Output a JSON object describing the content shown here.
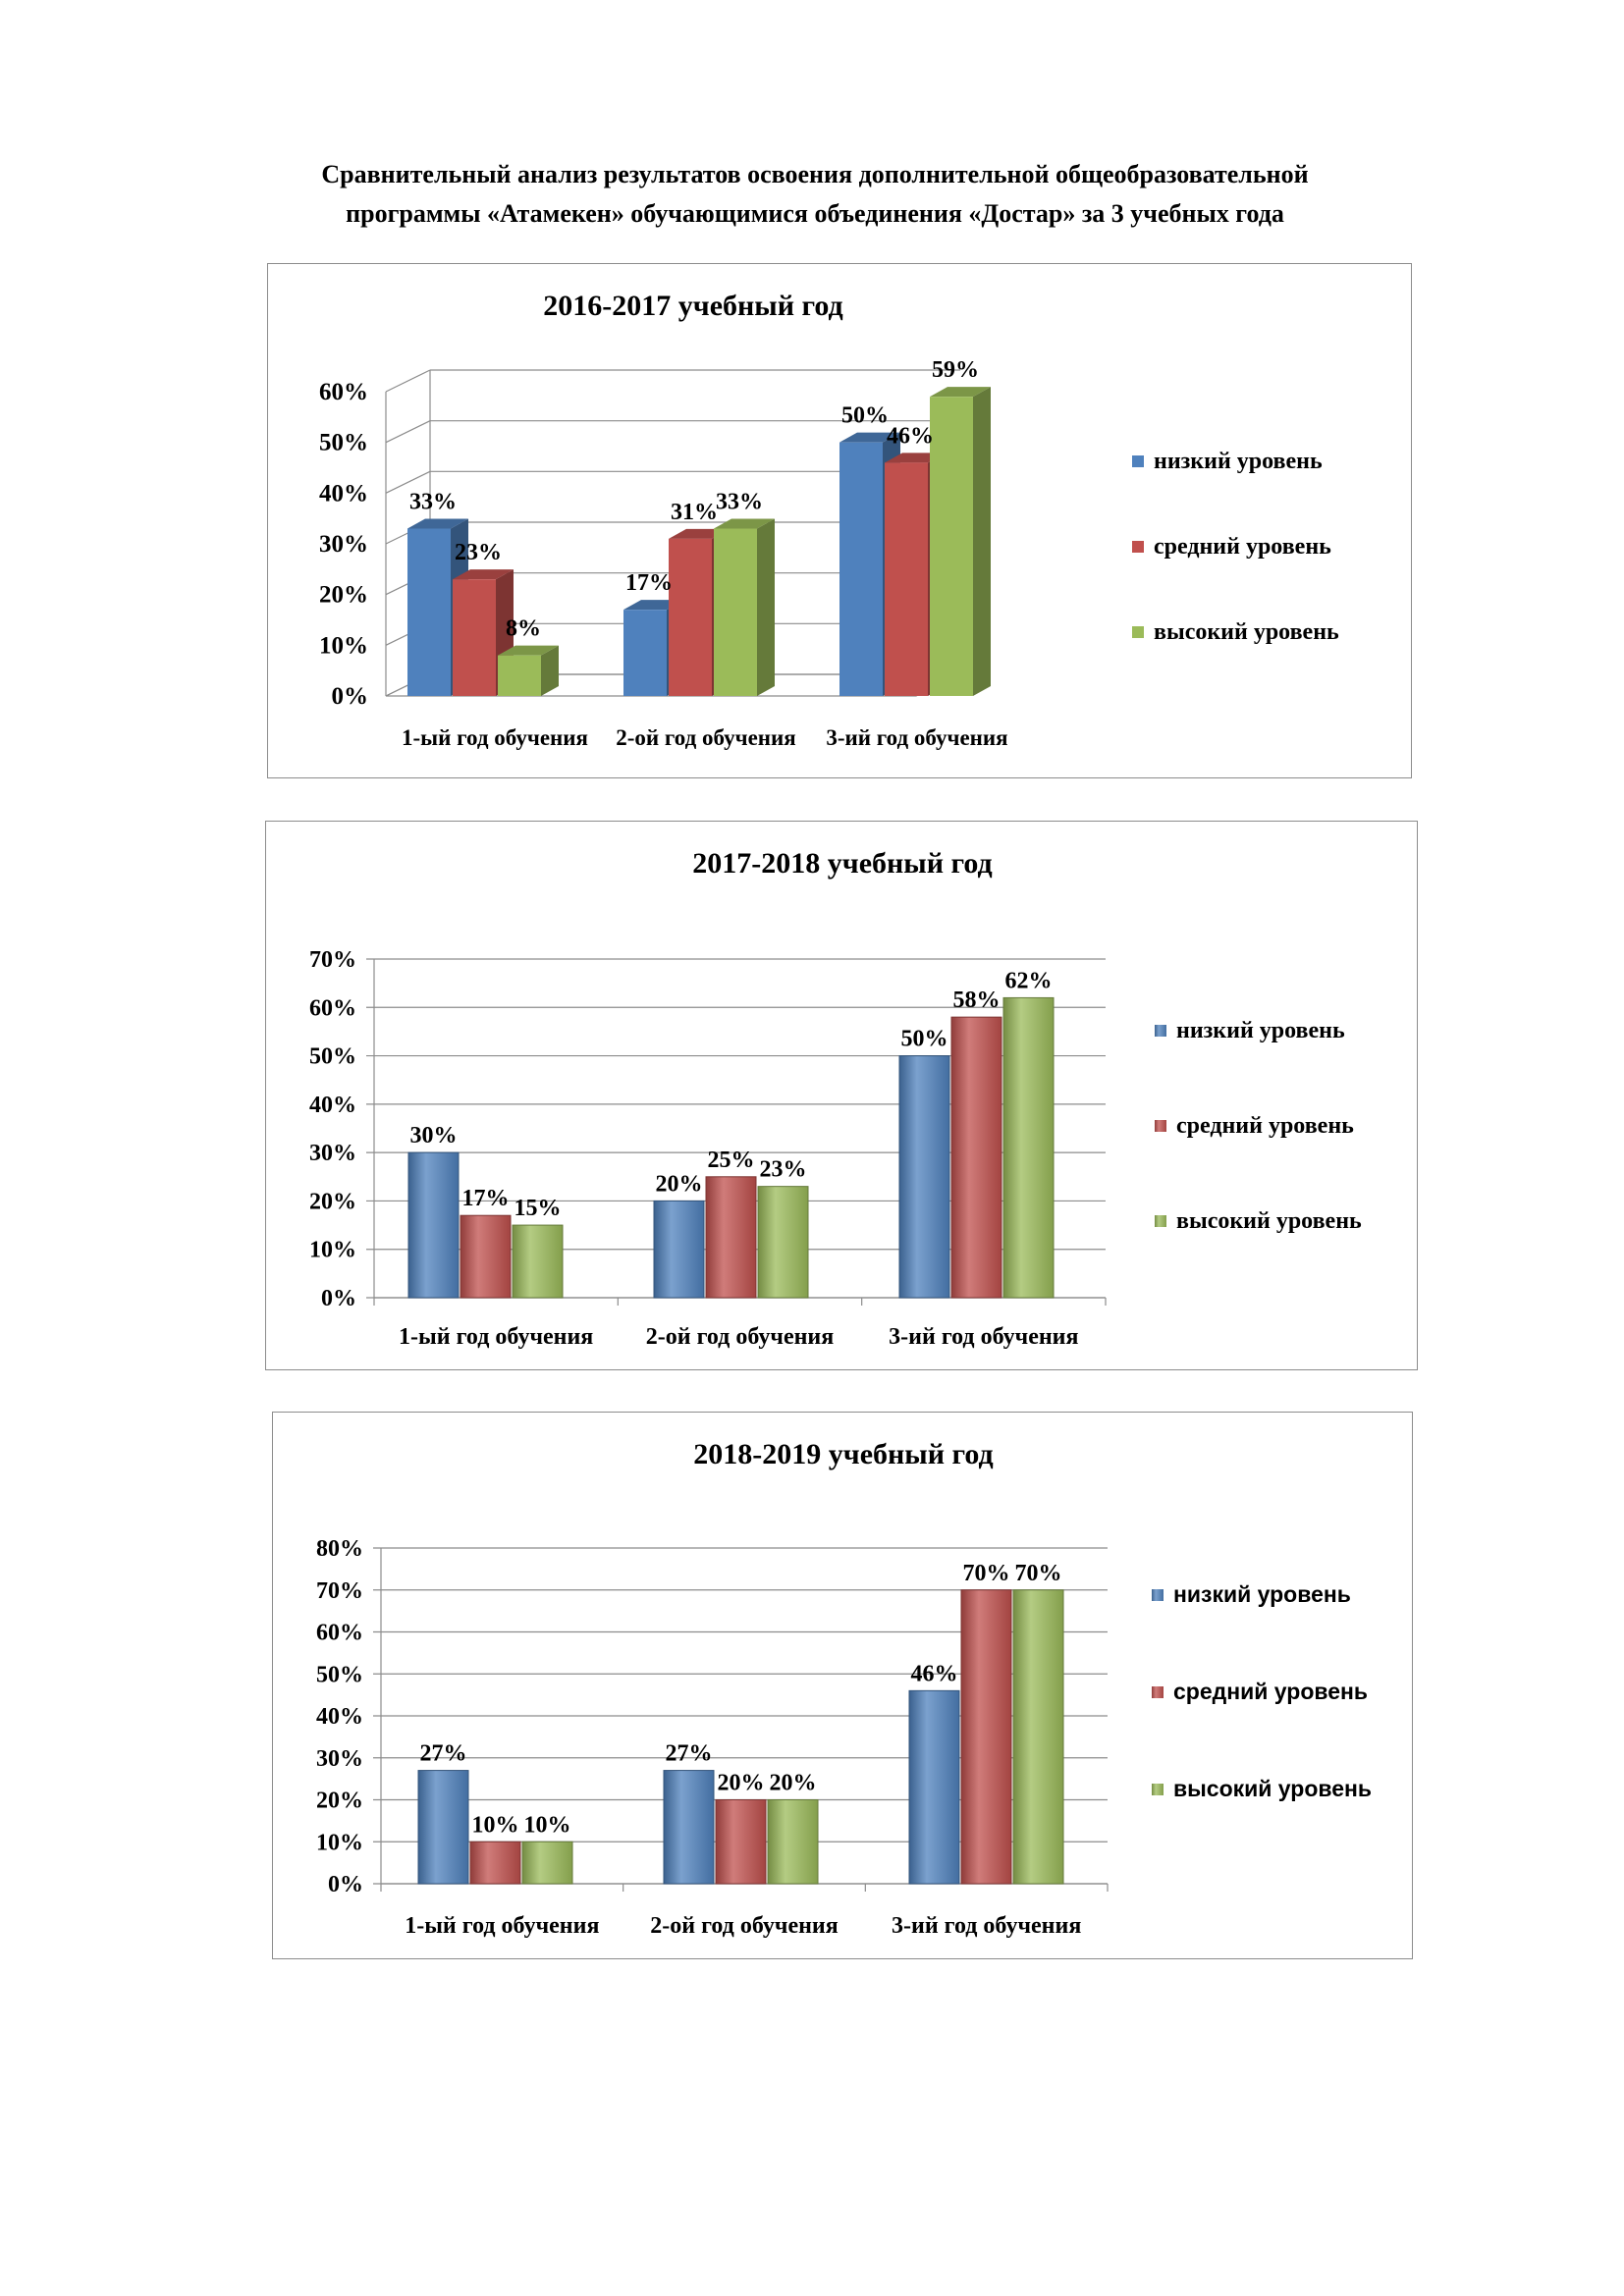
{
  "document": {
    "title_line1": "Сравнительный анализ  результатов освоения   дополнительной общеобразовательной",
    "title_line2": "программы «Атамекен»  обучающимися объединения «Достар» за 3 учебных года"
  },
  "colors": {
    "low": "#4f81bd",
    "mid": "#c0504d",
    "high": "#9bbb59"
  },
  "chart_data": [
    {
      "type": "bar",
      "style": "3d-column",
      "title": "2016-2017 учебный год",
      "categories": [
        "1-ый год обучения",
        "2-ой год обучения",
        "3-ий год обучения"
      ],
      "series": [
        {
          "name": "низкий уровень",
          "values": [
            33,
            17,
            50
          ]
        },
        {
          "name": "средний уровень",
          "values": [
            23,
            31,
            46
          ]
        },
        {
          "name": "высокий уровень",
          "values": [
            8,
            33,
            59
          ]
        }
      ],
      "yticks": [
        "0%",
        "10%",
        "20%",
        "30%",
        "40%",
        "50%",
        "60%"
      ],
      "ylim": [
        0,
        60
      ],
      "grid": true,
      "legend": "right"
    },
    {
      "type": "bar",
      "title": "2017-2018 учебный год",
      "categories": [
        "1-ый год обучения",
        "2-ой год обучения",
        "3-ий год обучения"
      ],
      "series": [
        {
          "name": "низкий уровень",
          "values": [
            30,
            20,
            50
          ]
        },
        {
          "name": "средний уровень",
          "values": [
            17,
            25,
            58
          ]
        },
        {
          "name": "высокий уровень",
          "values": [
            15,
            23,
            62
          ]
        }
      ],
      "yticks": [
        "0%",
        "10%",
        "20%",
        "30%",
        "40%",
        "50%",
        "60%",
        "70%"
      ],
      "ylim": [
        0,
        70
      ],
      "grid": true,
      "legend": "right"
    },
    {
      "type": "bar",
      "title": "2018-2019 учебный год",
      "categories": [
        "1-ый год обучения",
        "2-ой год обучения",
        "3-ий год обучения"
      ],
      "series": [
        {
          "name": "низкий уровень",
          "values": [
            27,
            27,
            46
          ]
        },
        {
          "name": "средний уровень",
          "values": [
            10,
            20,
            70
          ]
        },
        {
          "name": "высокий уровень",
          "values": [
            10,
            20,
            70
          ]
        }
      ],
      "yticks": [
        "0%",
        "10%",
        "20%",
        "30%",
        "40%",
        "50%",
        "60%",
        "70%",
        "80%"
      ],
      "ylim": [
        0,
        80
      ],
      "grid": true,
      "legend": "right"
    }
  ]
}
